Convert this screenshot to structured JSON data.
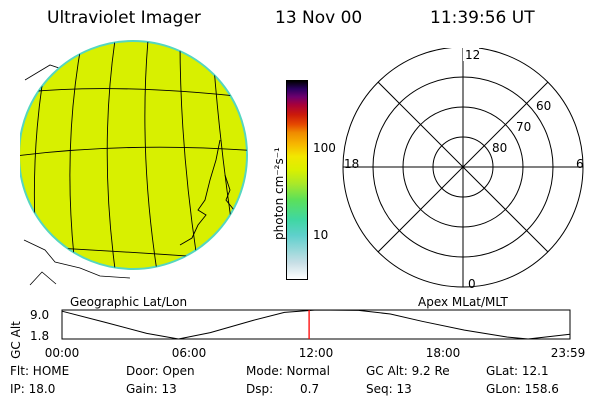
{
  "header": {
    "instrument": "Ultraviolet Imager",
    "date": "13 Nov 00",
    "time": "11:39:56 UT"
  },
  "colorbar": {
    "unit_label": "photon cm⁻²s⁻¹",
    "tick_labels": [
      "100",
      "10"
    ]
  },
  "panels": {
    "left_caption": "Geographic Lat/Lon",
    "right_caption": "Apex MLat/MLT"
  },
  "polar": {
    "mlt_labels": {
      "top": "12",
      "left": "18",
      "right": "6",
      "bottom": "0"
    },
    "lat_labels": [
      "60",
      "70",
      "80"
    ]
  },
  "orbit": {
    "y_axis_label": "GC Alt",
    "y_max_label": "9.0",
    "y_min_label": "1.8",
    "x_tick_labels": [
      "00:00",
      "06:00",
      "12:00",
      "18:00",
      "23:59"
    ]
  },
  "footer": {
    "flt": "Flt: HOME",
    "door": "Door: Open",
    "mode": "Mode: Normal",
    "gc_alt": "GC Alt: 9.2 Re",
    "glat": "GLat:  12.1",
    "ip": "IP: 18.0",
    "gain": "Gain: 13",
    "dsp_label": "Dsp:",
    "dsp_value": "0.7",
    "seq": "Seq: 13",
    "glon": "GLon: 158.6"
  },
  "chart_data": {
    "type": "line",
    "x_hours": [
      0,
      2,
      4,
      5.5,
      7,
      9,
      10.5,
      12,
      14,
      15.5,
      17,
      19,
      21,
      22,
      23.98
    ],
    "values_re": [
      8.7,
      6.0,
      3.2,
      1.8,
      3.4,
      6.4,
      8.4,
      9.0,
      8.9,
      8.0,
      6.2,
      4.0,
      2.3,
      1.8,
      3.0
    ],
    "ylim": [
      1.8,
      9.0
    ],
    "xlim": [
      0,
      23.98
    ],
    "current_time_hours": 11.666,
    "line_color": "#000000",
    "marker_color": "#ff0000"
  },
  "colors": {
    "disk_fill": "#d8f000",
    "disk_edge": "#55d6c0",
    "colorbar_stops": [
      "#ffffff",
      "#c9dfe6",
      "#5fd0cc",
      "#3fd7a2",
      "#5ce05a",
      "#a9e82a",
      "#d9f000",
      "#f2e700",
      "#f7b800",
      "#ef8a00",
      "#e64a00",
      "#cc1a0a",
      "#a8003a",
      "#6d006e",
      "#2b0060",
      "#000000"
    ]
  }
}
